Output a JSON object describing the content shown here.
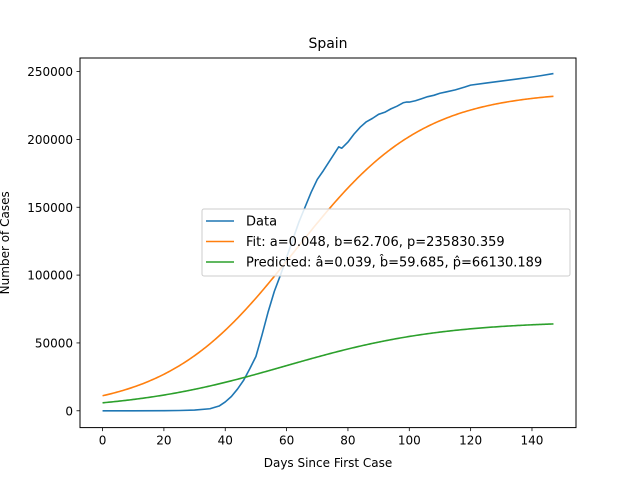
{
  "chart_data": {
    "type": "line",
    "title": "Spain",
    "xlabel": "Days Since First Case",
    "ylabel": "Number of Cases",
    "xlim": [
      -7.35,
      154.35
    ],
    "ylim": [
      -12400,
      260000
    ],
    "xticks": [
      0,
      20,
      40,
      60,
      80,
      100,
      120,
      140
    ],
    "yticks": [
      0,
      50000,
      100000,
      150000,
      200000,
      250000
    ],
    "grid": false,
    "legend_position": "center-right",
    "series": [
      {
        "name": "Data",
        "color": "#1f77b4",
        "x": [
          0,
          10,
          20,
          25,
          30,
          35,
          38,
          40,
          42,
          44,
          46,
          48,
          50,
          52,
          54,
          56,
          58,
          60,
          62,
          64,
          66,
          68,
          70,
          72,
          74,
          76,
          77,
          78,
          80,
          82,
          84,
          86,
          88,
          90,
          92,
          94,
          96,
          98,
          99,
          100,
          102,
          104,
          106,
          108,
          110,
          112,
          115,
          118,
          120,
          125,
          130,
          135,
          140,
          143,
          147
        ],
        "y": [
          0,
          0,
          50,
          200,
          500,
          1500,
          3500,
          6500,
          10500,
          16000,
          22500,
          31000,
          40000,
          56000,
          73000,
          88000,
          100000,
          113000,
          126000,
          139000,
          150000,
          161000,
          170500,
          177000,
          184000,
          191000,
          194500,
          193500,
          198000,
          204000,
          209000,
          213000,
          215500,
          218500,
          220000,
          222500,
          224500,
          227000,
          227500,
          227500,
          228500,
          230000,
          231500,
          232500,
          234000,
          235000,
          236500,
          238500,
          240000,
          241500,
          243000,
          244500,
          246000,
          247000,
          248500
        ]
      },
      {
        "name": "Fit: a=0.048, b=62.706, p=235830.359",
        "color": "#ff7f0e",
        "logistic": {
          "a": 0.048,
          "b": 62.706,
          "p": 235830.359
        },
        "x_range": [
          0,
          147
        ]
      },
      {
        "name": "Predicted: â=0.039, b̂=59.685, p̂=66130.189",
        "color": "#2ca02c",
        "logistic": {
          "a": 0.039,
          "b": 59.685,
          "p": 66130.189
        },
        "x_range": [
          0,
          147
        ]
      }
    ]
  }
}
